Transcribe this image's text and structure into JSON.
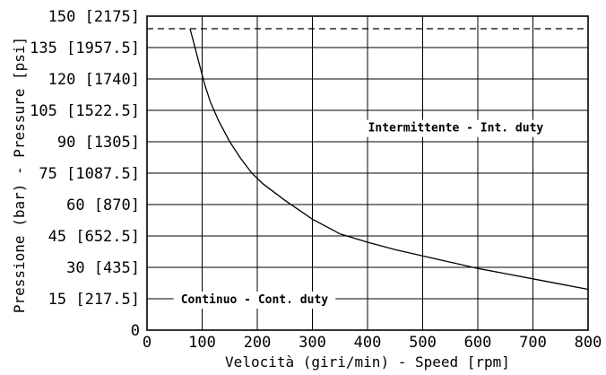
{
  "chart_data": {
    "type": "line",
    "xlabel": "Velocità (giri/min) - Speed [rpm]",
    "ylabel": "Pressione (bar) - Pressure [psi]",
    "xlim": [
      0,
      800
    ],
    "ylim": [
      0,
      150
    ],
    "grid": true,
    "x_ticks": [
      {
        "value": 0,
        "label": "0"
      },
      {
        "value": 100,
        "label": "100"
      },
      {
        "value": 200,
        "label": "200"
      },
      {
        "value": 300,
        "label": "300"
      },
      {
        "value": 400,
        "label": "400"
      },
      {
        "value": 500,
        "label": "500"
      },
      {
        "value": 600,
        "label": "600"
      },
      {
        "value": 700,
        "label": "700"
      },
      {
        "value": 800,
        "label": "800"
      }
    ],
    "y_ticks": [
      {
        "value": 0,
        "label": "0"
      },
      {
        "value": 15,
        "label": "15 [217.5]"
      },
      {
        "value": 30,
        "label": "30 [435]"
      },
      {
        "value": 45,
        "label": "45 [652.5]"
      },
      {
        "value": 60,
        "label": "60 [870]"
      },
      {
        "value": 75,
        "label": "75 [1087.5]"
      },
      {
        "value": 90,
        "label": "90 [1305]"
      },
      {
        "value": 105,
        "label": "105 [1522.5]"
      },
      {
        "value": 120,
        "label": "120 [1740]"
      },
      {
        "value": 135,
        "label": "135 [1957.5]"
      },
      {
        "value": 150,
        "label": "150 [2175]"
      }
    ],
    "series": [
      {
        "style": "solid",
        "x": [
          78,
          85,
          95,
          105,
          115,
          130,
          150,
          170,
          190,
          210,
          250,
          300,
          350,
          400,
          450,
          500,
          550,
          600,
          650,
          700,
          750,
          800
        ],
        "y": [
          144,
          137,
          127,
          117,
          109,
          100,
          90,
          82,
          75,
          70,
          62,
          53,
          46,
          42,
          38.5,
          35.5,
          32.5,
          29.5,
          27,
          24.5,
          22,
          19.5
        ]
      },
      {
        "style": "dashed",
        "x": [
          0,
          800
        ],
        "y": [
          144,
          144
        ]
      }
    ],
    "annotations": [
      {
        "text": "Intermittente - Int. duty",
        "x": 560,
        "y": 97
      },
      {
        "text": "Continuo - Cont. duty",
        "x": 195,
        "y": 15
      }
    ]
  }
}
